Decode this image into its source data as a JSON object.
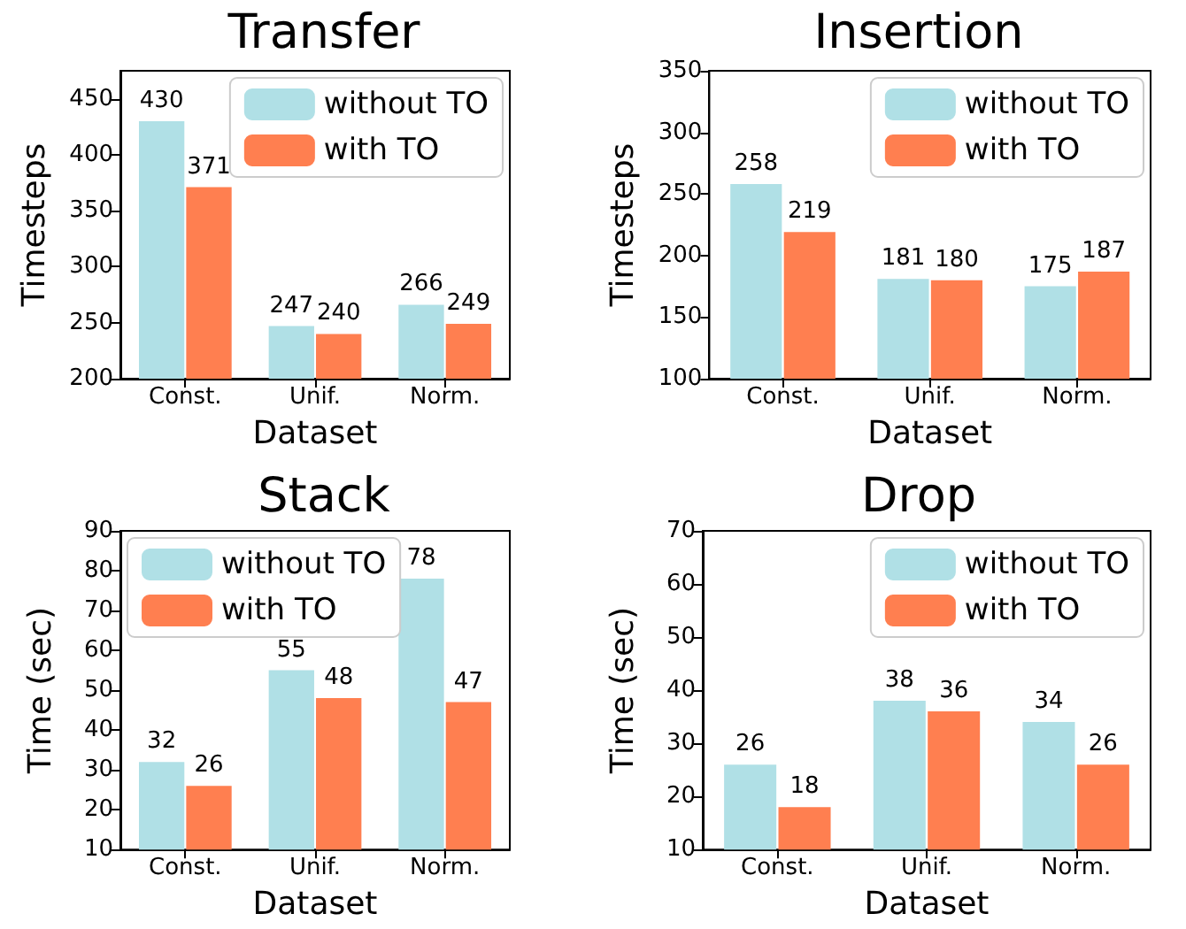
{
  "chart_data": [
    {
      "type": "bar",
      "title": "Transfer",
      "xlabel": "Dataset",
      "ylabel": "Timesteps",
      "categories": [
        "Const.",
        "Unif.",
        "Norm."
      ],
      "series": [
        {
          "name": "without TO",
          "color": "#b0e0e6",
          "values": [
            430,
            247,
            266
          ]
        },
        {
          "name": "with TO",
          "color": "#ff7f50",
          "values": [
            371,
            240,
            249
          ]
        }
      ],
      "ylim": [
        200,
        475
      ],
      "yticks": [
        200,
        250,
        300,
        350,
        400,
        450
      ],
      "data_labels": true,
      "legend": "top right"
    },
    {
      "type": "bar",
      "title": "Insertion",
      "xlabel": "Dataset",
      "ylabel": "Timesteps",
      "categories": [
        "Const.",
        "Unif.",
        "Norm."
      ],
      "series": [
        {
          "name": "without TO",
          "color": "#b0e0e6",
          "values": [
            258,
            181,
            175
          ]
        },
        {
          "name": "with TO",
          "color": "#ff7f50",
          "values": [
            219,
            180,
            187
          ]
        }
      ],
      "ylim": [
        100,
        350
      ],
      "yticks": [
        100,
        150,
        200,
        250,
        300,
        350
      ],
      "data_labels": true,
      "legend": "top right"
    },
    {
      "type": "bar",
      "title": "Stack",
      "xlabel": "Dataset",
      "ylabel": "Time (sec)",
      "categories": [
        "Const.",
        "Unif.",
        "Norm."
      ],
      "series": [
        {
          "name": "without TO",
          "color": "#b0e0e6",
          "values": [
            32,
            55,
            78
          ]
        },
        {
          "name": "with TO",
          "color": "#ff7f50",
          "values": [
            26,
            48,
            47
          ]
        }
      ],
      "ylim": [
        10,
        90
      ],
      "yticks": [
        10,
        20,
        30,
        40,
        50,
        60,
        70,
        80,
        90
      ],
      "data_labels": true,
      "legend": "top left"
    },
    {
      "type": "bar",
      "title": "Drop",
      "xlabel": "Dataset",
      "ylabel": "Time (sec)",
      "categories": [
        "Const.",
        "Unif.",
        "Norm."
      ],
      "series": [
        {
          "name": "without TO",
          "color": "#b0e0e6",
          "values": [
            26,
            38,
            34
          ]
        },
        {
          "name": "with TO",
          "color": "#ff7f50",
          "values": [
            18,
            36,
            26
          ]
        }
      ],
      "ylim": [
        10,
        70
      ],
      "yticks": [
        10,
        20,
        30,
        40,
        50,
        60,
        70
      ],
      "data_labels": true,
      "legend": "top right"
    }
  ]
}
